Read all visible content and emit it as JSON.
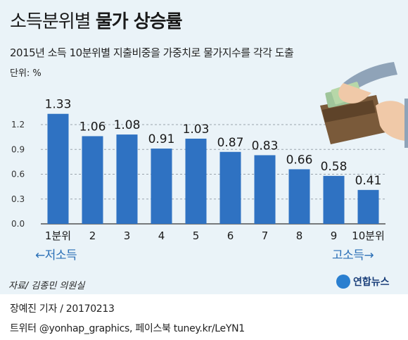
{
  "title_light": "소득분위별",
  "title_bold": "물가 상승률",
  "subtitle": "2015년 소득 10분위별 지출비중을 가중치로 물가지수를 각각 도출",
  "unit": "단위: %",
  "left_label": "←저소득",
  "right_label": "고소득→",
  "source": "자료/ 김종민 의원실",
  "logo_text": "연합뉴스",
  "credit_line1": "장예진 기자 / 20170213",
  "credit_line2": "트위터 @yonhap_graphics, 페이스북 tuney.kr/LeYN1",
  "colors": {
    "bar": "#2f72c2",
    "background": "#eaf3f8",
    "accent": "#2a6fb6"
  },
  "illustration_icon": "hands-wallet-icon",
  "chart_data": {
    "type": "bar",
    "title": "물가 상승률",
    "categories": [
      "1분위",
      "2",
      "3",
      "4",
      "5",
      "6",
      "7",
      "8",
      "9",
      "10분위"
    ],
    "values": [
      1.33,
      1.06,
      1.08,
      0.91,
      1.03,
      0.87,
      0.83,
      0.66,
      0.58,
      0.41
    ],
    "value_labels": [
      "1.33",
      "1.06",
      "1.08",
      "0.91",
      "1.03",
      "0.87",
      "0.83",
      "0.66",
      "0.58",
      "0.41"
    ],
    "yticks": [
      "0.0",
      "0.3",
      "0.6",
      "0.9",
      "1.2"
    ],
    "ytick_values": [
      0,
      0.3,
      0.6,
      0.9,
      1.2
    ],
    "ylim": [
      0,
      1.6
    ],
    "xlabel": "",
    "ylabel": "",
    "grid": true
  }
}
